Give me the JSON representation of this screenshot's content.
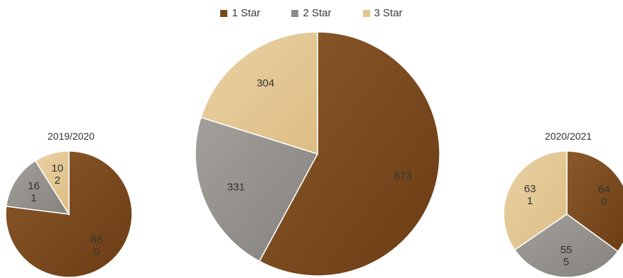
{
  "chart_data": {
    "type": "pie",
    "legend": {
      "position": "top",
      "entries": [
        {
          "label": "1 Star",
          "color": "#7a4a1e"
        },
        {
          "label": "2 Star",
          "color": "#8f8c88"
        },
        {
          "label": "3 Star",
          "color": "#e3c48c"
        }
      ]
    },
    "pies": [
      {
        "title": "2019/2020",
        "categories": [
          "1 Star",
          "2 Star",
          "3 Star"
        ],
        "values": [
          880,
          161,
          102
        ],
        "labels": [
          [
            "88",
            "0"
          ],
          [
            "16",
            "1"
          ],
          [
            "10",
            "2"
          ]
        ]
      },
      {
        "title": "",
        "categories": [
          "1 Star",
          "2 Star",
          "3 Star"
        ],
        "values": [
          873,
          331,
          304
        ],
        "labels": [
          [
            "873"
          ],
          [
            "331"
          ],
          [
            "304"
          ]
        ]
      },
      {
        "title": "2020/2021",
        "categories": [
          "1 Star",
          "2 Star",
          "3 Star"
        ],
        "values": [
          640,
          555,
          631
        ],
        "labels": [
          [
            "64",
            "0"
          ],
          [
            "55",
            "5"
          ],
          [
            "63",
            "1"
          ]
        ]
      }
    ]
  }
}
